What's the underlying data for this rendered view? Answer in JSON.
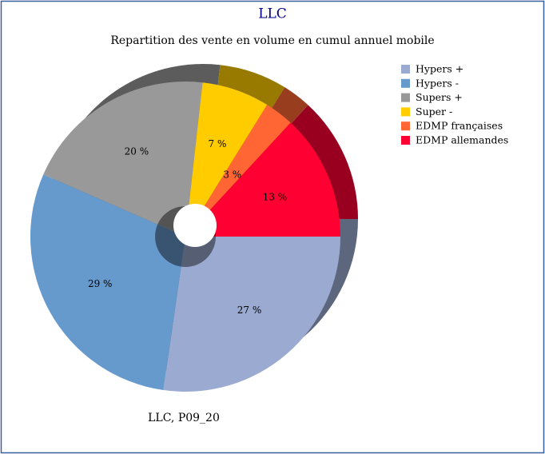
{
  "chart_data": {
    "type": "pie",
    "title": "LLC",
    "subtitle": "Repartition des vente en volume en cumul annuel mobile",
    "categories": [
      "Hypers +",
      "Hypers -",
      "Supers +",
      "Super -",
      "EDMP françaises",
      "EDMP allemandes"
    ],
    "values": [
      27,
      29,
      20,
      7,
      3,
      13
    ],
    "value_labels": [
      "27 %",
      "29 %",
      "20 %",
      "7 %",
      "3 %",
      "13 %"
    ],
    "colors": [
      "#9aaad0",
      "#6699cc",
      "#999999",
      "#ffcc00",
      "#ff6633",
      "#ff0033"
    ],
    "legend": "right",
    "annotation": "LLC, P09_20"
  }
}
